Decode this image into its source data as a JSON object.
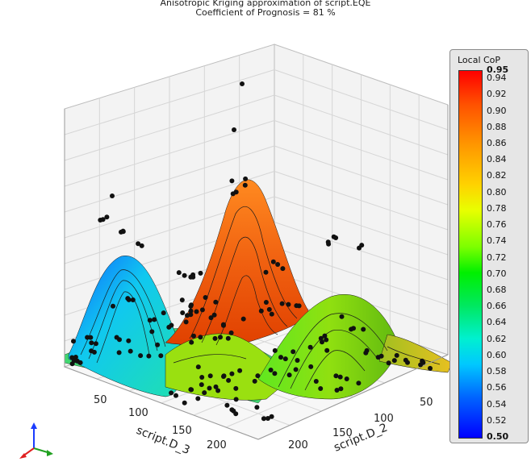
{
  "chart_data": {
    "type": "surface3d",
    "title": "Anisotropic Kriging  approximation of script.EQE",
    "subtitle": "Coefficient of Prognosis = 81 %",
    "axes": {
      "x": {
        "label": "script.D_3",
        "ticks": [
          "50",
          "100",
          "150",
          "200"
        ]
      },
      "y": {
        "label": "script.D_2",
        "ticks": [
          "50",
          "100",
          "150",
          "200"
        ]
      }
    },
    "colorbar": {
      "title": "Local CoP",
      "range": [
        0.5,
        0.95
      ],
      "ticks": [
        "0.95",
        "0.94",
        "0.92",
        "0.90",
        "0.88",
        "0.86",
        "0.84",
        "0.82",
        "0.80",
        "0.78",
        "0.76",
        "0.74",
        "0.72",
        "0.70",
        "0.68",
        "0.66",
        "0.64",
        "0.62",
        "0.60",
        "0.58",
        "0.56",
        "0.54",
        "0.52",
        "0.50"
      ]
    },
    "grid": true
  }
}
